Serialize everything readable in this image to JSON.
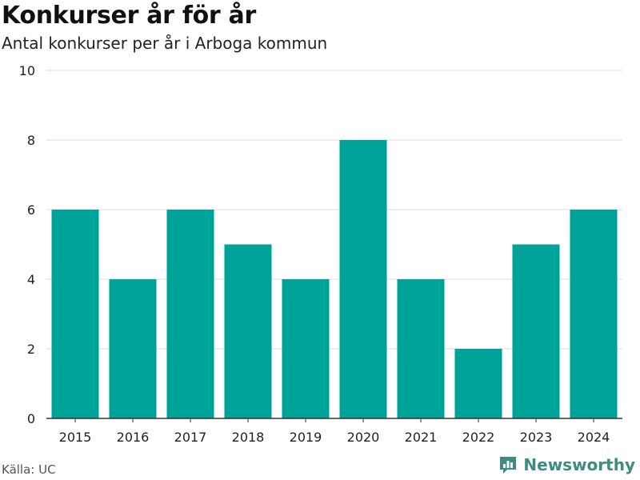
{
  "colors": {
    "bar": "#00a39a",
    "grid": "#dddddd",
    "axis": "#333333",
    "text": "#222222",
    "brand": "#3d8c82"
  },
  "chart_data": {
    "type": "bar",
    "title": "Konkurser år för år",
    "subtitle": "Antal konkurser per år i Arboga kommun",
    "xlabel": "",
    "ylabel": "",
    "categories": [
      "2015",
      "2016",
      "2017",
      "2018",
      "2019",
      "2020",
      "2021",
      "2022",
      "2023",
      "2024"
    ],
    "values": [
      6,
      4,
      6,
      5,
      4,
      8,
      4,
      2,
      5,
      6
    ],
    "ylim": [
      0,
      10
    ],
    "yticks": [
      "0",
      "2",
      "4",
      "6",
      "8",
      "10"
    ],
    "grid": true,
    "legend": "none"
  },
  "footer": {
    "source": "Källa: UC",
    "brand": "Newsworthy"
  },
  "icons": {
    "logo": "newsworthy-logo-icon"
  }
}
